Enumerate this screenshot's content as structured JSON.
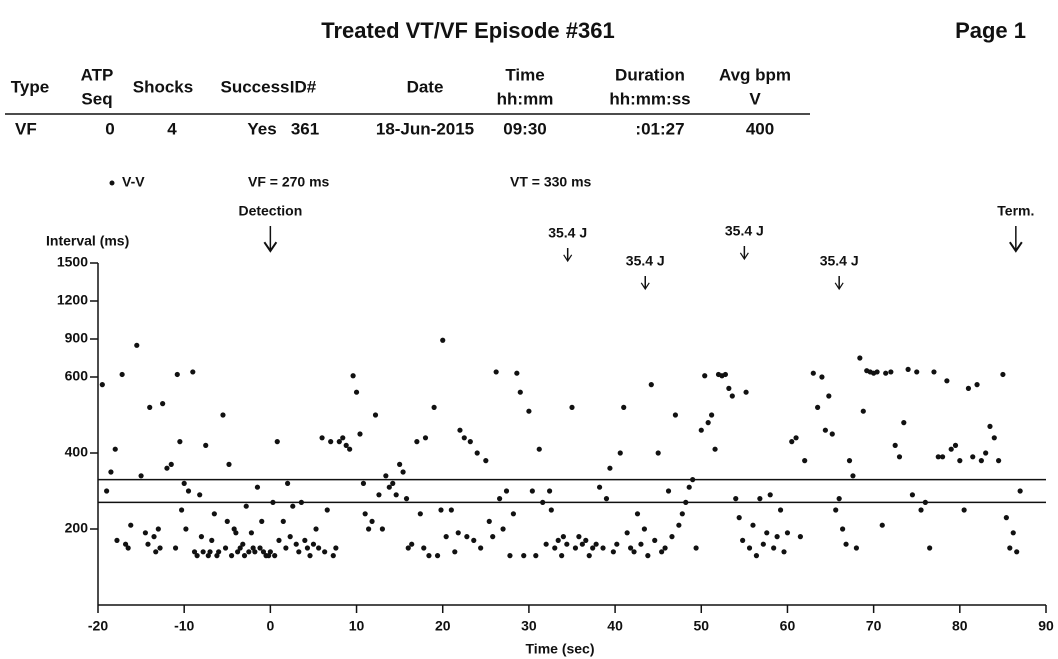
{
  "header": {
    "title": "Treated VT/VF Episode #361",
    "page": "Page 1",
    "columns": [
      [
        "Type"
      ],
      [
        "ATP",
        "Seq"
      ],
      [
        "Shocks"
      ],
      [
        "Success"
      ],
      [
        "ID#"
      ],
      [
        "Date"
      ],
      [
        "Time",
        "hh:mm"
      ],
      [
        "Duration",
        "hh:mm:ss"
      ],
      [
        "Avg bpm",
        "V"
      ]
    ],
    "row": [
      "VF",
      "0",
      "4",
      "Yes",
      "361",
      "18-Jun-2015",
      "09:30",
      ":01:27",
      "400"
    ]
  },
  "chart_data": {
    "type": "scatter",
    "ylabel": "Interval (ms)",
    "xlabel": "Time (sec)",
    "xlim": [
      -20,
      90
    ],
    "xticks": [
      -20,
      -10,
      0,
      10,
      20,
      30,
      40,
      50,
      60,
      70,
      80,
      90
    ],
    "ylim": [
      0,
      1500
    ],
    "yticks": [
      200,
      400,
      600,
      900,
      1200,
      1500
    ],
    "thresholds": [
      {
        "label": "VF = 270 ms",
        "value": 270
      },
      {
        "label": "VT = 330 ms",
        "value": 330
      }
    ],
    "annotations": [
      {
        "text": "Detection",
        "x": 0
      },
      {
        "text": "35.4 J",
        "x": 34.5
      },
      {
        "text": "35.4 J",
        "x": 43.5
      },
      {
        "text": "35.4 J",
        "x": 55
      },
      {
        "text": "35.4 J",
        "x": 66
      },
      {
        "text": "Term.",
        "x": 86.5
      }
    ],
    "series": [
      {
        "name": "V-V",
        "color": "#111111",
        "x": [
          -19.5,
          -19,
          -18.5,
          -18,
          -17.8,
          -17.2,
          -16.8,
          -16.5,
          -16.2,
          -15.5,
          -15,
          -14.5,
          -14.2,
          -14,
          -13.5,
          -13.3,
          -13,
          -12.8,
          -12.5,
          -12,
          -11.5,
          -11,
          -10.8,
          -10.5,
          -10.3,
          -10,
          -9.8,
          -9.5,
          -9,
          -8.8,
          -8.5,
          -8.2,
          -8,
          -7.8,
          -7.5,
          -7.2,
          -7,
          -6.8,
          -6.5,
          -6.2,
          -6,
          -5.5,
          -5.2,
          -5,
          -4.8,
          -4.5,
          -4.2,
          -4,
          -3.8,
          -3.5,
          -3.2,
          -3,
          -2.8,
          -2.5,
          -2.2,
          -2,
          -1.8,
          -1.5,
          -1.2,
          -1,
          -0.8,
          -0.5,
          -0.2,
          0,
          0.3,
          0.5,
          0.8,
          1,
          1.5,
          1.8,
          2,
          2.3,
          2.6,
          3,
          3.3,
          3.6,
          4,
          4.3,
          4.6,
          5,
          5.3,
          5.6,
          6,
          6.3,
          6.6,
          7,
          7.3,
          7.6,
          8,
          8.4,
          8.8,
          9.2,
          9.6,
          10,
          10.4,
          10.8,
          11,
          11.4,
          11.8,
          12.2,
          12.6,
          13,
          13.4,
          13.8,
          14.2,
          14.6,
          15,
          15.4,
          15.8,
          16,
          16.4,
          17,
          17.4,
          17.8,
          18,
          18.4,
          19,
          19.4,
          19.8,
          20,
          20.4,
          21,
          21.4,
          21.8,
          22,
          22.5,
          22.8,
          23.2,
          23.6,
          24,
          24.4,
          25,
          25.4,
          25.8,
          26.2,
          26.6,
          27,
          27.4,
          27.8,
          28.2,
          28.6,
          29,
          29.4,
          30,
          30.4,
          30.8,
          31.2,
          31.6,
          32,
          32.4,
          32.6,
          33,
          33.4,
          33.8,
          34,
          34.4,
          35,
          35.4,
          35.8,
          36.2,
          36.6,
          37,
          37.4,
          37.8,
          38.2,
          38.6,
          39,
          39.4,
          39.8,
          40.2,
          40.6,
          41,
          41.4,
          41.8,
          42.2,
          42.6,
          43,
          43.4,
          43.8,
          44.2,
          44.6,
          45,
          45.4,
          45.8,
          46.2,
          46.6,
          47,
          47.4,
          47.8,
          48.2,
          48.6,
          49,
          49.4,
          50,
          50.4,
          50.8,
          51.2,
          51.6,
          52,
          52.4,
          52.8,
          53.2,
          53.6,
          54,
          54.4,
          54.8,
          55.2,
          55.6,
          56,
          56.4,
          56.8,
          57.2,
          57.6,
          58,
          58.4,
          58.8,
          59.2,
          59.6,
          60,
          60.5,
          61,
          61.5,
          62,
          63,
          63.5,
          64,
          64.4,
          64.8,
          65.2,
          65.6,
          66,
          66.4,
          66.8,
          67.2,
          67.6,
          68,
          68.4,
          68.8,
          69.2,
          69.6,
          70,
          70.4,
          71,
          71.4,
          72,
          72.5,
          73,
          73.5,
          74,
          74.5,
          75,
          75.5,
          76,
          76.5,
          77,
          77.5,
          78,
          78.5,
          79,
          79.5,
          80,
          80.5,
          81,
          81.5,
          82,
          82.5,
          83,
          83.5,
          84,
          84.5,
          85,
          85.4,
          85.8,
          86.2,
          86.6,
          87
        ],
        "values": [
          580,
          300,
          350,
          410,
          170,
          620,
          160,
          150,
          210,
          850,
          340,
          190,
          160,
          520,
          180,
          140,
          200,
          150,
          530,
          360,
          370,
          150,
          620,
          430,
          250,
          320,
          200,
          300,
          640,
          140,
          130,
          290,
          180,
          140,
          420,
          130,
          140,
          170,
          240,
          130,
          140,
          500,
          150,
          220,
          370,
          130,
          200,
          190,
          140,
          150,
          160,
          130,
          260,
          140,
          190,
          150,
          140,
          310,
          150,
          220,
          140,
          130,
          130,
          140,
          270,
          130,
          430,
          170,
          220,
          150,
          320,
          180,
          260,
          160,
          140,
          270,
          170,
          150,
          130,
          160,
          200,
          150,
          440,
          140,
          250,
          430,
          130,
          150,
          430,
          440,
          420,
          410,
          610,
          560,
          450,
          320,
          240,
          200,
          220,
          500,
          290,
          200,
          340,
          310,
          320,
          290,
          370,
          350,
          280,
          150,
          160,
          430,
          240,
          150,
          440,
          130,
          520,
          130,
          250,
          890,
          180,
          250,
          140,
          190,
          460,
          440,
          180,
          430,
          170,
          400,
          150,
          380,
          220,
          180,
          640,
          280,
          200,
          300,
          130,
          240,
          630,
          560,
          130,
          510,
          300,
          130,
          410,
          270,
          160,
          300,
          250,
          150,
          170,
          130,
          180,
          160,
          520,
          150,
          180,
          160,
          170,
          130,
          150,
          160,
          310,
          150,
          280,
          360,
          140,
          160,
          400,
          520,
          190,
          150,
          140,
          240,
          160,
          200,
          130,
          580,
          170,
          400,
          140,
          150,
          300,
          180,
          500,
          210,
          240,
          270,
          310,
          330,
          150,
          460,
          610,
          480,
          500,
          410,
          620,
          610,
          620,
          570,
          550,
          280,
          230,
          170,
          560,
          150,
          210,
          130,
          280,
          160,
          190,
          290,
          150,
          180,
          250,
          140,
          190,
          430,
          440,
          180,
          380,
          630,
          520,
          600,
          460,
          550,
          450,
          250,
          280,
          200,
          160,
          380,
          340,
          150,
          750,
          510,
          650,
          640,
          630,
          640,
          210,
          630,
          640,
          420,
          390,
          480,
          660,
          290,
          640,
          250,
          270,
          150,
          640,
          390,
          390,
          590,
          410,
          420,
          380,
          250,
          570,
          390,
          580,
          380,
          400,
          470,
          440,
          380,
          620,
          230,
          150,
          190,
          140,
          300
        ]
      }
    ]
  }
}
